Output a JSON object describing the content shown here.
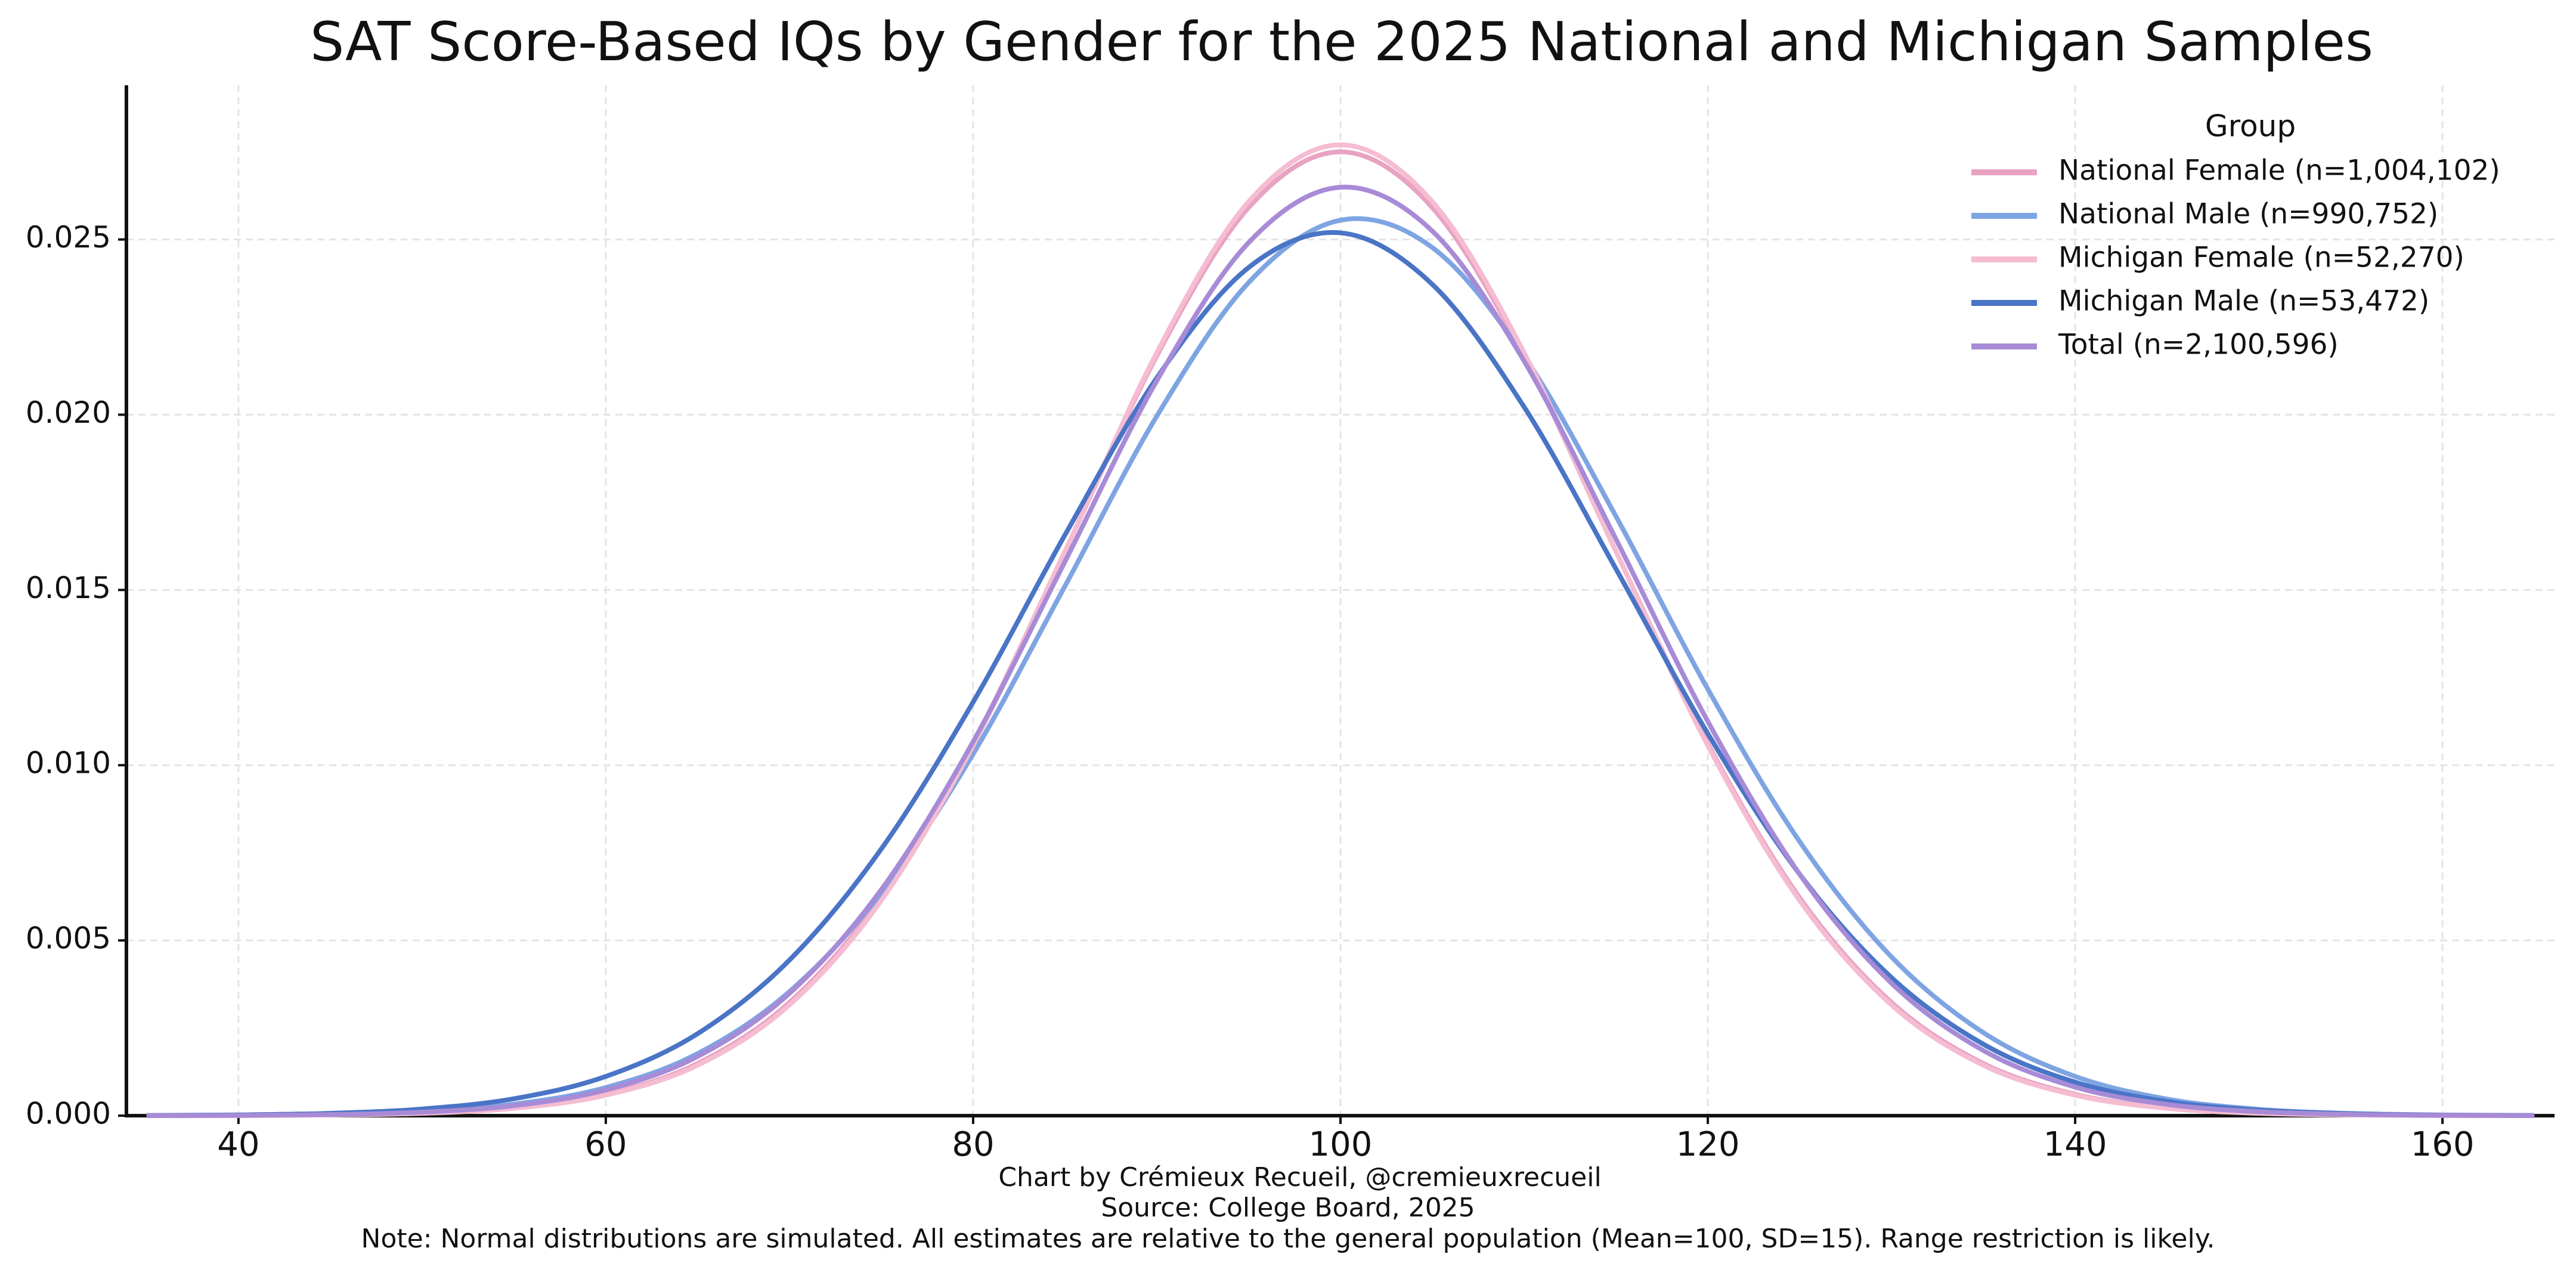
{
  "chart_data": {
    "type": "line",
    "title": "SAT Score-Based IQs by Gender for the 2025 National and Michigan Samples",
    "footer": [
      "Chart by Crémieux Recueil, @cremieuxrecueil",
      "Source: College Board, 2025",
      "Note: Normal distributions are simulated. All estimates are relative to the general population (Mean=100, SD=15). Range restriction is likely."
    ],
    "legend_title": "Group",
    "legend": "upper right",
    "grid": true,
    "x": [
      35,
      40,
      45,
      50,
      55,
      60,
      65,
      70,
      75,
      80,
      85,
      90,
      95,
      100,
      105,
      110,
      115,
      120,
      125,
      130,
      135,
      140,
      145,
      150,
      155,
      160,
      165
    ],
    "xlim": [
      33.9,
      166.1
    ],
    "xticks": [
      40,
      60,
      80,
      100,
      120,
      140,
      160
    ],
    "ylim": [
      0,
      0.0294
    ],
    "yticks": [
      {
        "value": 0,
        "label": "0.000"
      },
      {
        "value": 0.005,
        "label": "0.005"
      },
      {
        "value": 0.01,
        "label": "0.010"
      },
      {
        "value": 0.015,
        "label": "0.015"
      },
      {
        "value": 0.02,
        "label": "0.020"
      },
      {
        "value": 0.025,
        "label": "0.025"
      }
    ],
    "series": [
      {
        "name": "National Female (n=1,004,102)",
        "color": "#e8a3c3",
        "values": [
          1e-06,
          5e-06,
          2e-05,
          7e-05,
          0.00022,
          0.00061,
          0.00149,
          0.00323,
          0.00622,
          0.01062,
          0.0161,
          0.02168,
          0.02591,
          0.0275,
          0.02591,
          0.02168,
          0.0161,
          0.01062,
          0.00622,
          0.00323,
          0.00149,
          0.00061,
          0.00022,
          7e-05,
          2e-05,
          5e-06,
          1e-06
        ]
      },
      {
        "name": "National Male (n=990,752)",
        "color": "#7ea4e2",
        "values": [
          3e-06,
          1.2e-05,
          4e-05,
          0.000121,
          0.000328,
          0.000803,
          0.00177,
          0.00354,
          0.00636,
          0.01032,
          0.01511,
          0.01996,
          0.02377,
          0.02555,
          0.02477,
          0.02167,
          0.0171,
          0.01217,
          0.00782,
          0.00453,
          0.00237,
          0.00112,
          0.000474,
          0.000182,
          6.3e-05,
          2e-05,
          6e-06
        ]
      },
      {
        "name": "Michigan Female (n=52,270)",
        "color": "#f5bcd2",
        "values": [
          1e-06,
          5e-06,
          1.9e-05,
          6.7e-05,
          0.00021,
          0.000585,
          0.00144,
          0.00316,
          0.00614,
          0.01056,
          0.0161,
          0.02177,
          0.02608,
          0.0277,
          0.02608,
          0.02177,
          0.0161,
          0.01056,
          0.00614,
          0.00316,
          0.00144,
          0.000585,
          0.00021,
          6.7e-05,
          1.9e-05,
          5e-06,
          1e-06
        ]
      },
      {
        "name": "Michigan Male (n=53,472)",
        "color": "#4a74c6",
        "values": [
          6e-06,
          2.2e-05,
          6.7e-05,
          0.00019,
          0.000484,
          0.00112,
          0.00234,
          0.00444,
          0.00761,
          0.0118,
          0.01657,
          0.02105,
          0.0242,
          0.02519,
          0.02372,
          0.02022,
          0.0156,
          0.0109,
          0.00689,
          0.00394,
          0.00204,
          0.000955,
          0.000406,
          0.000155,
          5.4e-05,
          1.7e-05,
          5e-06
        ]
      },
      {
        "name": "Total (n=2,100,596)",
        "color": "#a88bd6",
        "values": [
          2e-06,
          9e-06,
          3.1e-05,
          9.9e-05,
          0.000286,
          0.000735,
          0.00169,
          0.00349,
          0.00645,
          0.01067,
          0.01581,
          0.02097,
          0.02491,
          0.02649,
          0.02524,
          0.02153,
          0.01645,
          0.01125,
          0.00689,
          0.00378,
          0.00186,
          0.000817,
          0.000322,
          0.000113,
          3.6e-05,
          1e-05,
          3e-06
        ]
      }
    ]
  }
}
